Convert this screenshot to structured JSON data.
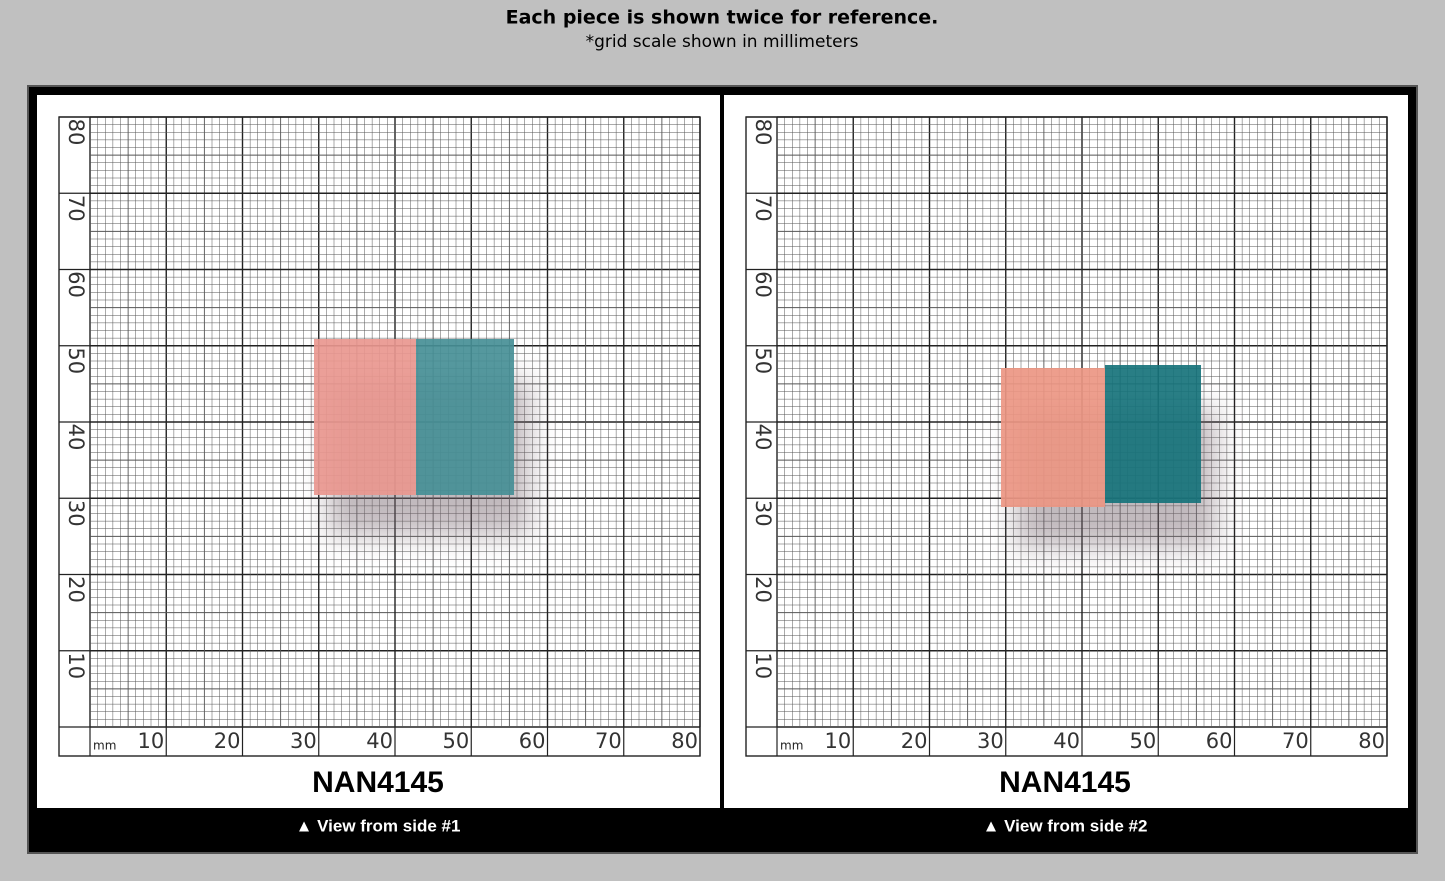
{
  "header": {
    "title": "Each piece is shown twice for reference.",
    "subtitle": "*grid scale shown in millimeters"
  },
  "grid": {
    "unit": "mm",
    "x_labels": [
      10,
      20,
      30,
      40,
      50,
      60,
      70,
      80
    ],
    "y_labels": [
      10,
      20,
      30,
      40,
      50,
      60,
      70,
      80
    ]
  },
  "panels": [
    {
      "label": "NAN4145",
      "caption": "▲ View from side #1"
    },
    {
      "label": "NAN4145",
      "caption": "▲ View from side #2"
    }
  ]
}
